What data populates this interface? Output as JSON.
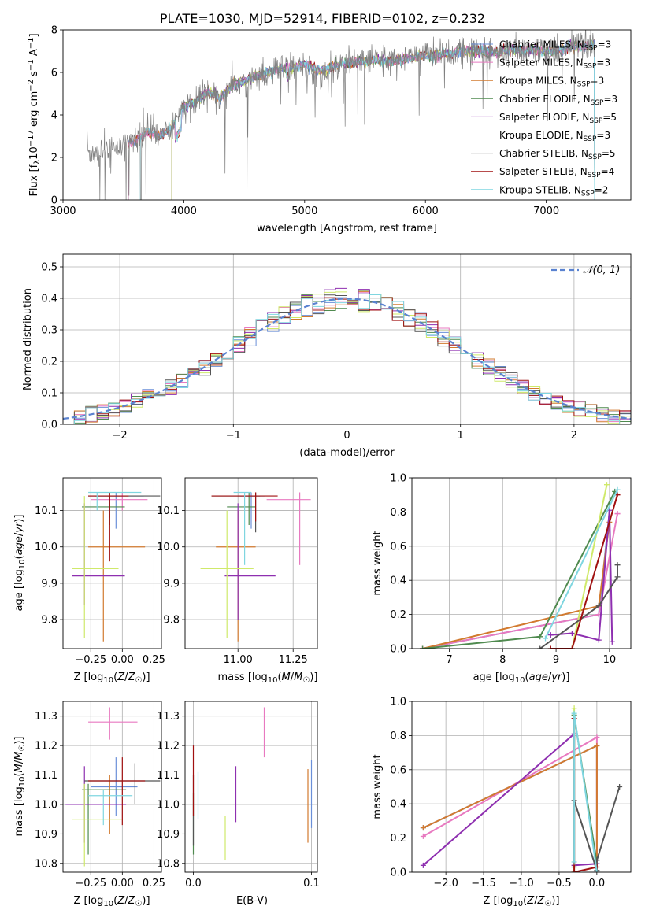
{
  "title": "PLATE=1030, MJD=52914, FIBERID=0102, z=0.232",
  "colors": {
    "Chabrier MILES": "#6a8fd8",
    "Salpeter MILES": "#e879c0",
    "Kroupa MILES": "#d27a2f",
    "Chabrier ELODIE": "#4f8a4f",
    "Salpeter ELODIE": "#8e2fb0",
    "Kroupa ELODIE": "#cfe96a",
    "Chabrier STELIB": "#555555",
    "Salpeter STELIB": "#a01010",
    "Kroupa STELIB": "#7fd6e0",
    "normal": "#5a82d0",
    "grid": "#b0b0b0"
  },
  "legend_spectrum": [
    {
      "name": "Chabrier MILES",
      "label": "Chabrier MILES, N",
      "sub": "SSP",
      "tail": "=3"
    },
    {
      "name": "Salpeter MILES",
      "label": "Salpeter MILES, N",
      "sub": "SSP",
      "tail": "=3"
    },
    {
      "name": "Kroupa MILES",
      "label": "Kroupa MILES, N",
      "sub": "SSP",
      "tail": "=3"
    },
    {
      "name": "Chabrier ELODIE",
      "label": "Chabrier ELODIE, N",
      "sub": "SSP",
      "tail": "=3"
    },
    {
      "name": "Salpeter ELODIE",
      "label": "Salpeter ELODIE, N",
      "sub": "SSP",
      "tail": "=5"
    },
    {
      "name": "Kroupa ELODIE",
      "label": "Kroupa ELODIE, N",
      "sub": "SSP",
      "tail": "=3"
    },
    {
      "name": "Chabrier STELIB",
      "label": "Chabrier STELIB, N",
      "sub": "SSP",
      "tail": "=5"
    },
    {
      "name": "Salpeter STELIB",
      "label": "Salpeter STELIB, N",
      "sub": "SSP",
      "tail": "=4"
    },
    {
      "name": "Kroupa STELIB",
      "label": "Kroupa STELIB, N",
      "sub": "SSP",
      "tail": "=2"
    }
  ],
  "legend_hist": "𝒩(0, 1)",
  "chart_data": [
    {
      "id": "spectrum",
      "type": "line",
      "title": "PLATE=1030, MJD=52914, FIBERID=0102, z=0.232",
      "xlabel": "wavelength [Angstrom, rest frame]",
      "ylabel": "Flux [f_λ 10^-17 erg cm^-2 s^-1 A^-1]",
      "xlim": [
        3000,
        7700
      ],
      "ylim": [
        0,
        8
      ],
      "xticks": [
        3000,
        4000,
        5000,
        6000,
        7000
      ],
      "yticks": [
        0,
        2,
        4,
        6,
        8
      ],
      "legend": "top-right",
      "data_points": [
        [
          3200,
          2.3
        ],
        [
          3300,
          2.3
        ],
        [
          3400,
          2.5
        ],
        [
          3500,
          2.6
        ],
        [
          3600,
          2.8
        ],
        [
          3700,
          3.2
        ],
        [
          3800,
          3.0
        ],
        [
          3900,
          3.4
        ],
        [
          4000,
          4.4
        ],
        [
          4100,
          4.6
        ],
        [
          4200,
          5.1
        ],
        [
          4300,
          4.8
        ],
        [
          4400,
          5.4
        ],
        [
          4500,
          5.6
        ],
        [
          4600,
          5.8
        ],
        [
          4700,
          6.0
        ],
        [
          4800,
          6.2
        ],
        [
          4900,
          6.2
        ],
        [
          5000,
          6.4
        ],
        [
          5100,
          6.1
        ],
        [
          5200,
          6.2
        ],
        [
          5300,
          6.4
        ],
        [
          5400,
          6.5
        ],
        [
          5500,
          6.5
        ],
        [
          5600,
          6.6
        ],
        [
          5700,
          6.5
        ],
        [
          5800,
          6.6
        ],
        [
          5900,
          6.7
        ],
        [
          6000,
          6.8
        ],
        [
          6100,
          6.8
        ],
        [
          6200,
          6.9
        ],
        [
          6300,
          7.0
        ],
        [
          6400,
          7.0
        ],
        [
          6500,
          7.0
        ],
        [
          6600,
          6.9
        ],
        [
          6700,
          7.1
        ],
        [
          6800,
          7.0
        ],
        [
          6900,
          7.1
        ],
        [
          7000,
          7.0
        ],
        [
          7100,
          7.0
        ],
        [
          7200,
          7.2
        ],
        [
          7300,
          7.2
        ],
        [
          7400,
          7.3
        ]
      ],
      "model_start": {
        "Chabrier MILES": 3540,
        "Salpeter MILES": 3540,
        "Kroupa MILES": 3540,
        "Chabrier ELODIE": 3900,
        "Salpeter ELODIE": 3900,
        "Kroupa ELODIE": 3900,
        "Chabrier STELIB": 3200,
        "Salpeter STELIB": 3540,
        "Kroupa STELIB": 3640
      }
    },
    {
      "id": "residuals",
      "type": "histogram",
      "xlabel": "(data-model)/error",
      "ylabel": "Normed distribution",
      "xlim": [
        -2.5,
        2.5
      ],
      "ylim": [
        0,
        0.54
      ],
      "xticks": [
        -2,
        -1,
        0,
        1,
        2
      ],
      "yticks": [
        0.0,
        0.1,
        0.2,
        0.3,
        0.4,
        0.5
      ],
      "bin_width": 0.1,
      "bin_start": -2.5,
      "model": "normal(0,1)",
      "legend": "top-right"
    },
    {
      "id": "age_vs_Z",
      "type": "errorbar",
      "xlabel": "Z [log10(Z/Z☉)]",
      "ylabel": "age  [log10(age/yr)]",
      "xlim": [
        -0.47,
        0.31
      ],
      "ylim": [
        9.72,
        10.19
      ],
      "xticks": [
        -0.25,
        0.0,
        0.25
      ],
      "yticks": [
        9.8,
        9.9,
        10.0,
        10.1
      ],
      "points": [
        {
          "model": "Chabrier MILES",
          "x": -0.05,
          "y": 10.14,
          "xerr": [
            0.17,
            0.22
          ],
          "yerr": [
            0.09,
            0.01
          ]
        },
        {
          "model": "Salpeter MILES",
          "x": 0.0,
          "y": 10.13,
          "xerr": [
            0.25,
            0.2
          ],
          "yerr": [
            0.03,
            0.02
          ]
        },
        {
          "model": "Kroupa MILES",
          "x": -0.15,
          "y": 10.0,
          "xerr": [
            0.12,
            0.33
          ],
          "yerr": [
            0.26,
            0.1
          ]
        },
        {
          "model": "Chabrier ELODIE",
          "x": -0.1,
          "y": 10.11,
          "xerr": [
            0.22,
            0.12
          ],
          "yerr": [
            0.05,
            0.03
          ]
        },
        {
          "model": "Salpeter ELODIE",
          "x": -0.3,
          "y": 9.92,
          "xerr": [
            0.1,
            0.32
          ],
          "yerr": [
            0.08,
            0.2
          ]
        },
        {
          "model": "Kroupa ELODIE",
          "x": -0.3,
          "y": 9.94,
          "xerr": [
            0.1,
            0.27
          ],
          "yerr": [
            0.19,
            0.2
          ]
        },
        {
          "model": "Chabrier STELIB",
          "x": -0.1,
          "y": 10.14,
          "xerr": [
            0.17,
            0.4
          ],
          "yerr": [
            0.06,
            0.0
          ]
        },
        {
          "model": "Salpeter STELIB",
          "x": -0.1,
          "y": 10.14,
          "xerr": [
            0.17,
            0.15
          ],
          "yerr": [
            0.18,
            0.01
          ]
        },
        {
          "model": "Kroupa STELIB",
          "x": -0.2,
          "y": 10.15,
          "xerr": [
            0.07,
            0.35
          ],
          "yerr": [
            0.05,
            0.0
          ]
        }
      ]
    },
    {
      "id": "age_vs_mass",
      "type": "errorbar",
      "xlabel": "mass [log10(M/M☉)]",
      "ylabel": "",
      "xlim": [
        10.76,
        11.36
      ],
      "ylim": [
        9.72,
        10.19
      ],
      "xticks": [
        11.0,
        11.25
      ],
      "yticks": [
        9.8,
        9.9,
        10.0,
        10.1
      ],
      "points": [
        {
          "model": "Chabrier MILES",
          "x": 11.06,
          "y": 10.14,
          "xerr": [
            0.05,
            0.06
          ],
          "yerr": [
            0.09,
            0.01
          ]
        },
        {
          "model": "Salpeter MILES",
          "x": 11.28,
          "y": 10.13,
          "xerr": [
            0.15,
            0.05
          ],
          "yerr": [
            0.18,
            0.02
          ]
        },
        {
          "model": "Kroupa MILES",
          "x": 11.0,
          "y": 10.0,
          "xerr": [
            0.1,
            0.08
          ],
          "yerr": [
            0.26,
            0.1
          ]
        },
        {
          "model": "Chabrier ELODIE",
          "x": 11.05,
          "y": 10.11,
          "xerr": [
            0.1,
            0.03
          ],
          "yerr": [
            0.05,
            0.04
          ]
        },
        {
          "model": "Salpeter ELODIE",
          "x": 11.0,
          "y": 9.92,
          "xerr": [
            0.06,
            0.17
          ],
          "yerr": [
            0.12,
            0.2
          ]
        },
        {
          "model": "Kroupa ELODIE",
          "x": 10.95,
          "y": 9.94,
          "xerr": [
            0.12,
            0.12
          ],
          "yerr": [
            0.19,
            0.16
          ]
        },
        {
          "model": "Chabrier STELIB",
          "x": 11.08,
          "y": 10.14,
          "xerr": [
            0.2,
            0.02
          ],
          "yerr": [
            0.1,
            0.01
          ]
        },
        {
          "model": "Salpeter STELIB",
          "x": 11.08,
          "y": 10.14,
          "xerr": [
            0.2,
            0.1
          ],
          "yerr": [
            0.07,
            0.01
          ]
        },
        {
          "model": "Kroupa STELIB",
          "x": 11.03,
          "y": 10.15,
          "xerr": [
            0.05,
            0.03
          ],
          "yerr": [
            0.2,
            0.0
          ]
        }
      ]
    },
    {
      "id": "mass_weight_vs_age",
      "type": "line",
      "xlabel": "age  [log10(age/yr)]",
      "ylabel": "mass weight",
      "xlim": [
        6.3,
        10.4
      ],
      "ylim": [
        0,
        1
      ],
      "xticks": [
        7,
        8,
        9,
        10
      ],
      "yticks": [
        0.0,
        0.2,
        0.4,
        0.6,
        0.8,
        1.0
      ],
      "series": [
        {
          "model": "Chabrier MILES",
          "x": [
            6.5,
            9.8,
            10.0
          ],
          "y": [
            0.0,
            0.2,
            0.8
          ]
        },
        {
          "model": "Salpeter MILES",
          "x": [
            6.5,
            9.8,
            10.15,
            10.15
          ],
          "y": [
            0.0,
            0.2,
            0.79,
            0.79
          ]
        },
        {
          "model": "Kroupa MILES",
          "x": [
            6.5,
            9.8,
            10.0
          ],
          "y": [
            0.0,
            0.25,
            0.74
          ]
        },
        {
          "model": "Chabrier ELODIE",
          "x": [
            6.5,
            8.7,
            10.1
          ],
          "y": [
            0.0,
            0.07,
            0.92
          ]
        },
        {
          "model": "Salpeter ELODIE",
          "x": [
            8.9,
            9.3,
            9.8,
            10.0,
            10.05
          ],
          "y": [
            0.08,
            0.09,
            0.05,
            0.81,
            0.04
          ]
        },
        {
          "model": "Kroupa ELODIE",
          "x": [
            9.3,
            9.95
          ],
          "y": [
            0.0,
            0.96
          ]
        },
        {
          "model": "Chabrier STELIB",
          "x": [
            8.7,
            9.8,
            10.15,
            10.15
          ],
          "y": [
            0.0,
            0.25,
            0.42,
            0.49
          ]
        },
        {
          "model": "Salpeter STELIB",
          "x": [
            8.9,
            9.3,
            10.15
          ],
          "y": [
            0.0,
            0.0,
            0.9
          ]
        },
        {
          "model": "Kroupa STELIB",
          "x": [
            8.8,
            10.15
          ],
          "y": [
            0.06,
            0.93
          ]
        }
      ]
    },
    {
      "id": "mass_vs_Z",
      "type": "errorbar",
      "xlabel": "Z [log10(Z/Z☉)]",
      "ylabel": "mass [log10(M/M☉)]",
      "xlim": [
        -0.47,
        0.31
      ],
      "ylim": [
        10.77,
        11.35
      ],
      "xticks": [
        -0.25,
        0.0,
        0.25
      ],
      "yticks": [
        10.8,
        10.9,
        11.0,
        11.1,
        11.2,
        11.3
      ],
      "points": [
        {
          "model": "Chabrier MILES",
          "x": -0.05,
          "y": 11.06,
          "xerr": [
            0.2,
            0.17
          ],
          "yerr": [
            0.1,
            0.1
          ]
        },
        {
          "model": "Salpeter MILES",
          "x": -0.1,
          "y": 11.28,
          "xerr": [
            0.17,
            0.22
          ],
          "yerr": [
            0.06,
            0.05
          ]
        },
        {
          "model": "Kroupa MILES",
          "x": -0.1,
          "y": 11.0,
          "xerr": [
            0.17,
            0.05
          ],
          "yerr": [
            0.1,
            0.1
          ]
        },
        {
          "model": "Chabrier ELODIE",
          "x": -0.27,
          "y": 11.05,
          "xerr": [
            0.05,
            0.3
          ],
          "yerr": [
            0.22,
            0.02
          ]
        },
        {
          "model": "Salpeter ELODIE",
          "x": -0.3,
          "y": 11.0,
          "xerr": [
            0.15,
            0.33
          ],
          "yerr": [
            0.13,
            0.13
          ]
        },
        {
          "model": "Kroupa ELODIE",
          "x": -0.3,
          "y": 10.95,
          "xerr": [
            0.1,
            0.3
          ],
          "yerr": [
            0.16,
            0.12
          ]
        },
        {
          "model": "Chabrier STELIB",
          "x": 0.1,
          "y": 11.08,
          "xerr": [
            0.4,
            0.2
          ],
          "yerr": [
            0.08,
            0.06
          ]
        },
        {
          "model": "Salpeter STELIB",
          "x": 0.0,
          "y": 11.08,
          "xerr": [
            0.27,
            0.18
          ],
          "yerr": [
            0.15,
            0.08
          ]
        },
        {
          "model": "Kroupa STELIB",
          "x": -0.15,
          "y": 11.03,
          "xerr": [
            0.12,
            0.23
          ],
          "yerr": [
            0.1,
            0.02
          ]
        }
      ]
    },
    {
      "id": "mass_vs_ebv",
      "type": "errorbar",
      "xlabel": "E(B-V)",
      "ylabel": "",
      "xlim": [
        -0.007,
        0.105
      ],
      "ylim": [
        10.77,
        11.35
      ],
      "xticks": [
        0.0,
        0.1
      ],
      "yticks": [
        10.8,
        10.9,
        11.0,
        11.1,
        11.2,
        11.3
      ],
      "points": [
        {
          "model": "Chabrier MILES",
          "x": 0.1,
          "y": 11.06,
          "yerr": [
            0.14,
            0.09
          ]
        },
        {
          "model": "Salpeter MILES",
          "x": 0.06,
          "y": 11.26,
          "yerr": [
            0.1,
            0.07
          ]
        },
        {
          "model": "Kroupa MILES",
          "x": 0.097,
          "y": 11.0,
          "yerr": [
            0.13,
            0.12
          ]
        },
        {
          "model": "Chabrier ELODIE",
          "x": 0.0,
          "y": 10.99,
          "yerr": [
            0.16,
            0.05
          ]
        },
        {
          "model": "Salpeter ELODIE",
          "x": 0.036,
          "y": 11.04,
          "yerr": [
            0.1,
            0.09
          ]
        },
        {
          "model": "Kroupa ELODIE",
          "x": 0.027,
          "y": 10.91,
          "yerr": [
            0.1,
            0.05
          ]
        },
        {
          "model": "Chabrier STELIB",
          "x": 0.0,
          "y": 11.08,
          "yerr": [
            0.22,
            0.02
          ]
        },
        {
          "model": "Salpeter STELIB",
          "x": 0.0,
          "y": 11.06,
          "yerr": [
            0.1,
            0.14
          ]
        },
        {
          "model": "Kroupa STELIB",
          "x": 0.004,
          "y": 11.03,
          "yerr": [
            0.08,
            0.08
          ]
        }
      ]
    },
    {
      "id": "mass_weight_vs_Z",
      "type": "line",
      "xlabel": "Z [log10(Z/Z☉)]",
      "ylabel": "mass weight",
      "xlim": [
        -2.45,
        0.45
      ],
      "ylim": [
        0,
        1
      ],
      "xticks": [
        -2.0,
        -1.5,
        -1.0,
        -0.5,
        0.0
      ],
      "yticks": [
        0.0,
        0.2,
        0.4,
        0.6,
        0.8,
        1.0
      ],
      "series": [
        {
          "model": "Chabrier MILES",
          "x": [
            -2.3,
            0.0,
            0.0
          ],
          "y": [
            0.26,
            0.74,
            0.0
          ]
        },
        {
          "model": "Salpeter MILES",
          "x": [
            -2.3,
            0.0,
            0.0
          ],
          "y": [
            0.21,
            0.79,
            0.0
          ]
        },
        {
          "model": "Kroupa MILES",
          "x": [
            -2.3,
            0.0,
            0.0
          ],
          "y": [
            0.26,
            0.74,
            0.0
          ]
        },
        {
          "model": "Chabrier ELODIE",
          "x": [
            -0.3,
            -0.3,
            0.0
          ],
          "y": [
            0.03,
            0.92,
            0.05
          ]
        },
        {
          "model": "Salpeter ELODIE",
          "x": [
            -2.3,
            -0.3,
            -0.3,
            0.0
          ],
          "y": [
            0.04,
            0.81,
            0.04,
            0.05
          ]
        },
        {
          "model": "Kroupa ELODIE",
          "x": [
            -0.3,
            -0.3
          ],
          "y": [
            0.0,
            0.96
          ]
        },
        {
          "model": "Chabrier STELIB",
          "x": [
            -0.3,
            0.0,
            0.0,
            0.3
          ],
          "y": [
            0.42,
            0.01,
            0.07,
            0.5
          ]
        },
        {
          "model": "Salpeter STELIB",
          "x": [
            -0.3,
            -0.3,
            0.0
          ],
          "y": [
            0.9,
            0.0,
            0.03
          ]
        },
        {
          "model": "Kroupa STELIB",
          "x": [
            -0.3,
            -0.3,
            0.0
          ],
          "y": [
            0.06,
            0.93,
            0.0
          ]
        }
      ]
    }
  ]
}
